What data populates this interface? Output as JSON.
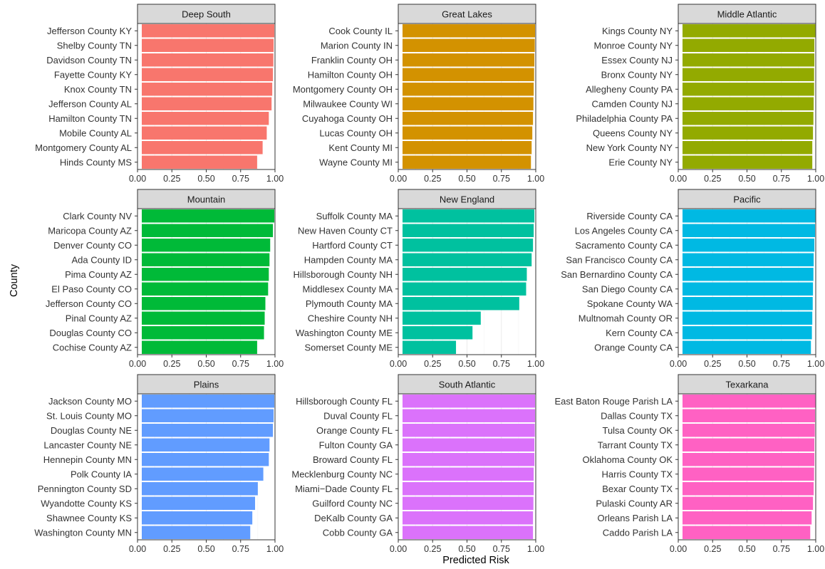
{
  "chart_data": {
    "type": "bar",
    "orientation": "horizontal",
    "xlabel": "Predicted Risk",
    "ylabel": "County",
    "xlim": [
      0,
      1
    ],
    "xticks": [
      "0.00",
      "0.25",
      "0.50",
      "0.75",
      "1.00"
    ],
    "grid": true,
    "facets": [
      {
        "title": "Deep South",
        "color": "#F8766D",
        "categories": [
          "Jefferson County KY",
          "Shelby County TN",
          "Davidson County TN",
          "Fayette County KY",
          "Knox County TN",
          "Jefferson County AL",
          "Hamilton County TN",
          "Mobile County AL",
          "Montgomery County AL",
          "Hinds County MS"
        ],
        "values": [
          0.995,
          0.99,
          0.988,
          0.985,
          0.98,
          0.975,
          0.955,
          0.94,
          0.91,
          0.87
        ]
      },
      {
        "title": "Great Lakes",
        "color": "#D39200",
        "categories": [
          "Cook County IL",
          "Marion County IN",
          "Franklin County OH",
          "Hamilton County OH",
          "Montgomery County OH",
          "Milwaukee County WI",
          "Cuyahoga County OH",
          "Lucas County OH",
          "Kent County MI",
          "Wayne County MI"
        ],
        "values": [
          0.995,
          0.993,
          0.99,
          0.988,
          0.985,
          0.983,
          0.98,
          0.975,
          0.97,
          0.965
        ]
      },
      {
        "title": "Middle Atlantic",
        "color": "#93AA00",
        "categories": [
          "Kings County NY",
          "Monroe County NY",
          "Essex County NJ",
          "Bronx County NY",
          "Allegheny County PA",
          "Camden County NJ",
          "Philadelphia County PA",
          "Queens County NY",
          "New York County NY",
          "Erie County NY"
        ],
        "values": [
          0.997,
          0.99,
          0.99,
          0.988,
          0.988,
          0.985,
          0.983,
          0.98,
          0.975,
          0.975
        ]
      },
      {
        "title": "Mountain",
        "color": "#00BA38",
        "categories": [
          "Clark County NV",
          "Maricopa County AZ",
          "Denver County CO",
          "Ada County ID",
          "Pima County AZ",
          "El Paso County CO",
          "Jefferson County CO",
          "Pinal County AZ",
          "Douglas County CO",
          "Cochise County AZ"
        ],
        "values": [
          0.995,
          0.985,
          0.965,
          0.96,
          0.955,
          0.95,
          0.93,
          0.925,
          0.92,
          0.87
        ]
      },
      {
        "title": "New England",
        "color": "#00C19F",
        "categories": [
          "Suffolk County MA",
          "New Haven County CT",
          "Hartford County CT",
          "Hampden County MA",
          "Hillsborough County NH",
          "Middlesex County MA",
          "Plymouth County MA",
          "Cheshire County NH",
          "Washington County ME",
          "Somerset County ME"
        ],
        "values": [
          0.99,
          0.985,
          0.98,
          0.97,
          0.935,
          0.93,
          0.88,
          0.6,
          0.54,
          0.42
        ]
      },
      {
        "title": "Pacific",
        "color": "#00B9E3",
        "categories": [
          "Riverside County CA",
          "Los Angeles County CA",
          "Sacramento County CA",
          "San Francisco County CA",
          "San Bernardino County CA",
          "San Diego County CA",
          "Spokane County WA",
          "Multnomah County OR",
          "Kern County CA",
          "Orange County CA"
        ],
        "values": [
          0.997,
          0.995,
          0.99,
          0.985,
          0.983,
          0.98,
          0.978,
          0.975,
          0.972,
          0.965
        ]
      },
      {
        "title": "Plains",
        "color": "#619CFF",
        "categories": [
          "Jackson County MO",
          "St. Louis County MO",
          "Douglas County NE",
          "Lancaster County NE",
          "Hennepin County MN",
          "Polk County IA",
          "Pennington County SD",
          "Wyandotte County KS",
          "Shawnee County KS",
          "Washington County MN"
        ],
        "values": [
          0.995,
          0.99,
          0.985,
          0.96,
          0.955,
          0.915,
          0.875,
          0.855,
          0.835,
          0.82
        ]
      },
      {
        "title": "South Atlantic",
        "color": "#DB72FB",
        "categories": [
          "Hillsborough County FL",
          "Duval County FL",
          "Orange County FL",
          "Fulton County GA",
          "Broward County FL",
          "Mecklenburg County NC",
          "Miami−Dade County FL",
          "Guilford County NC",
          "DeKalb County GA",
          "Cobb County GA"
        ],
        "values": [
          0.995,
          0.995,
          0.993,
          0.99,
          0.99,
          0.985,
          0.985,
          0.983,
          0.98,
          0.98
        ]
      },
      {
        "title": "Texarkana",
        "color": "#FF61C3",
        "categories": [
          "East Baton Rouge Parish LA",
          "Dallas County TX",
          "Tulsa County OK",
          "Tarrant County TX",
          "Oklahoma County OK",
          "Harris County TX",
          "Bexar County TX",
          "Pulaski County AR",
          "Orleans Parish LA",
          "Caddo Parish LA"
        ],
        "values": [
          0.997,
          0.995,
          0.993,
          0.99,
          0.99,
          0.988,
          0.985,
          0.98,
          0.97,
          0.96
        ]
      }
    ]
  }
}
